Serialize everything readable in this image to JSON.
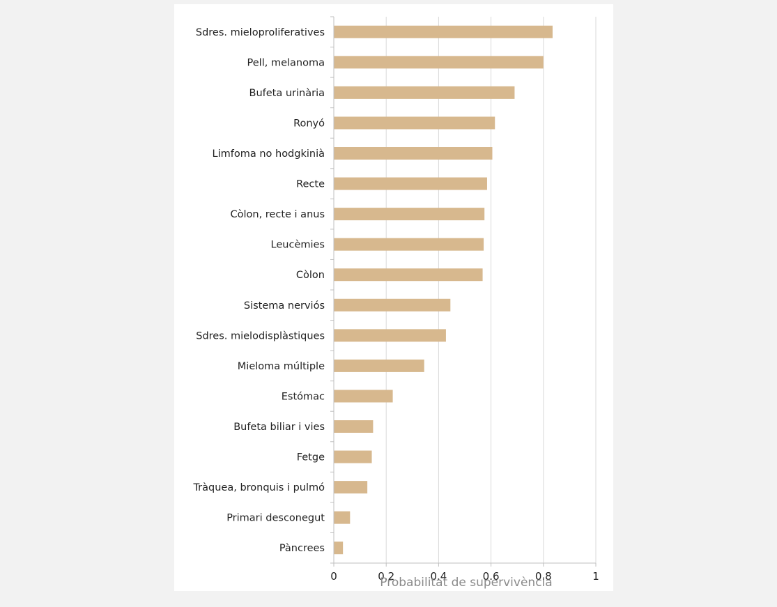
{
  "chart_data": {
    "type": "bar",
    "orientation": "horizontal",
    "categories": [
      "Sdres. mieloproliferatives",
      "Pell, melanoma",
      "Bufeta urinària",
      "Ronyó",
      "Limfoma no hodgkinià",
      "Recte",
      "Còlon, recte i anus",
      "Leucèmies",
      "Còlon",
      "Sistema nerviós",
      "Sdres. mielodisplàstiques",
      "Mieloma múltiple",
      "Estómac",
      "Bufeta biliar i vies",
      "Fetge",
      "Tràquea, bronquis i pulmó",
      "Primari desconegut",
      "Pàncrees"
    ],
    "values": [
      0.835,
      0.8,
      0.69,
      0.615,
      0.605,
      0.585,
      0.575,
      0.572,
      0.568,
      0.445,
      0.428,
      0.345,
      0.225,
      0.15,
      0.145,
      0.128,
      0.062,
      0.035
    ],
    "xlabel": "Probabilitat de supervivència",
    "ylabel": "",
    "xlim": [
      0,
      1
    ],
    "xticks": [
      "0",
      "0.2",
      "0.4",
      "0.6",
      "0.8",
      "1"
    ],
    "grid": "vertical",
    "colors": {
      "bar": "#d7b88e",
      "grid": "#d9d9d9",
      "axis": "#bfbfbf",
      "page_background": "#f2f2f2",
      "panel_background": "#ffffff"
    }
  }
}
